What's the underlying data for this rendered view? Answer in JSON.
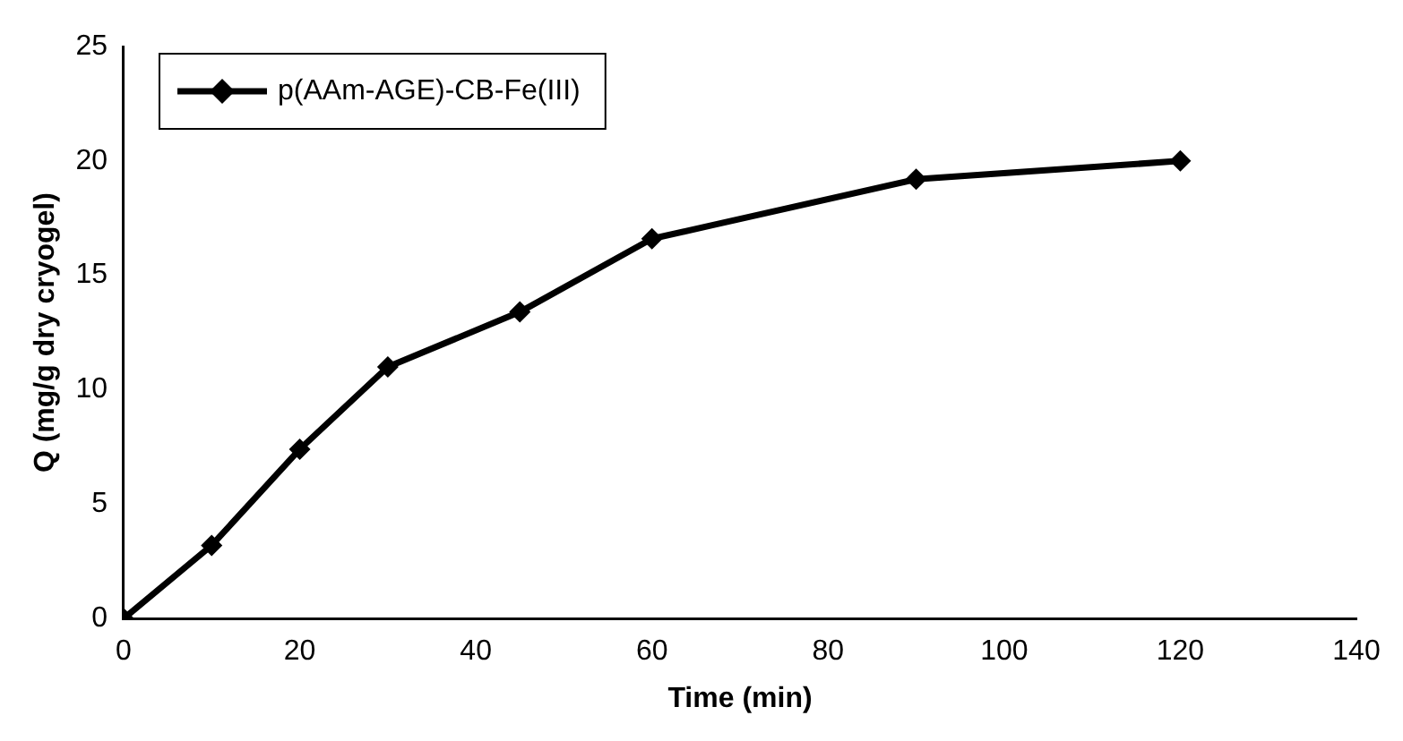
{
  "chart_data": {
    "type": "line",
    "xlabel": "Time (min)",
    "ylabel": "Q (mg/g dry cryogel)",
    "x": [
      0,
      10,
      20,
      30,
      45,
      60,
      90,
      120
    ],
    "series": [
      {
        "name": "p(AAm-AGE)-CB-Fe(III)",
        "color": "#000000",
        "values": [
          0,
          3.2,
          7.4,
          11.0,
          13.4,
          16.6,
          19.2,
          20.0
        ]
      }
    ],
    "xlim": [
      0,
      140
    ],
    "xticks": [
      0,
      20,
      40,
      60,
      80,
      100,
      120,
      140
    ],
    "ylim": [
      0,
      25
    ],
    "yticks": [
      0,
      5,
      10,
      15,
      20,
      25
    ],
    "grid": false,
    "legend": "top left",
    "marker": "diamond",
    "line_style": "solid"
  }
}
